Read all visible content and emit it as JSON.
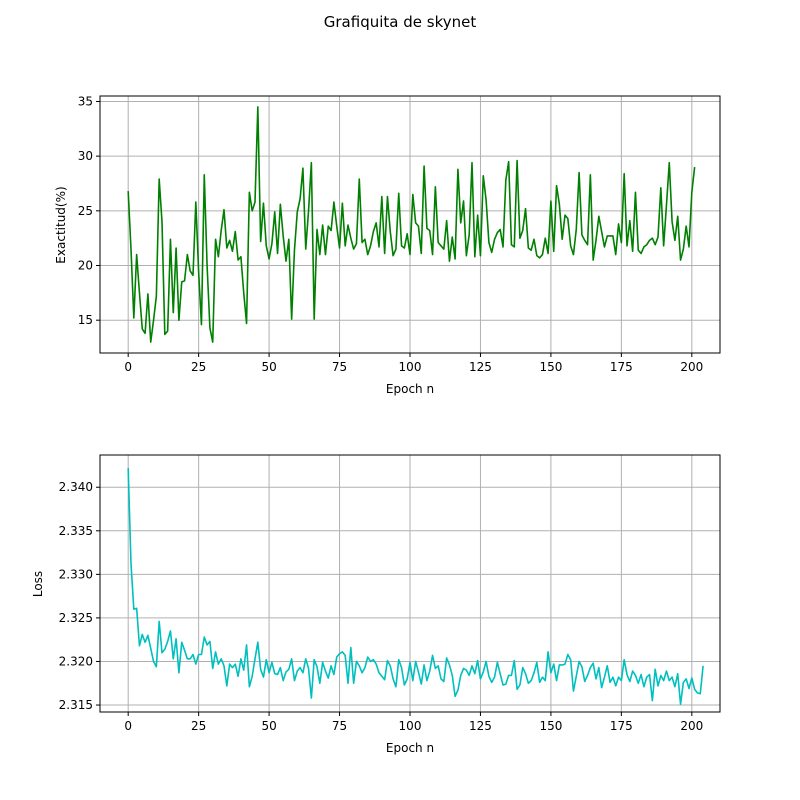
{
  "figure": {
    "suptitle": "Grafiquita de skynet"
  },
  "chart_data": [
    {
      "type": "line",
      "xlabel": "Epoch n",
      "ylabel": "Exactitud(%)",
      "xlim": [
        -10,
        210
      ],
      "ylim": [
        12,
        35.5
      ],
      "x_ticks": [
        0,
        25,
        50,
        75,
        100,
        125,
        150,
        175,
        200
      ],
      "x_tick_labels": [
        "0",
        "25",
        "50",
        "75",
        "100",
        "125",
        "150",
        "175",
        "200"
      ],
      "y_ticks": [
        15,
        20,
        25,
        30,
        35
      ],
      "y_tick_labels": [
        "15",
        "20",
        "25",
        "30",
        "35"
      ],
      "grid": true,
      "line_color": "#008000",
      "series": [
        {
          "values": [
            26.8,
            21.5,
            15.2,
            21.0,
            17.5,
            14.2,
            13.8,
            17.4,
            13.0,
            15.0,
            17.2,
            27.9,
            24.0,
            13.7,
            14.0,
            22.4,
            15.7,
            21.6,
            15.0,
            18.5,
            18.6,
            21.0,
            19.5,
            19.1,
            25.8,
            19.4,
            14.6,
            28.3,
            20.0,
            14.3,
            13.0,
            22.4,
            20.8,
            23.2,
            25.1,
            21.6,
            22.3,
            21.3,
            23.1,
            20.5,
            20.8,
            17.5,
            14.7,
            26.7,
            25.0,
            25.8,
            34.5,
            22.2,
            25.7,
            21.8,
            20.6,
            22.0,
            24.9,
            21.1,
            25.6,
            22.7,
            20.4,
            22.4,
            15.1,
            21.4,
            24.9,
            26.1,
            28.9,
            21.5,
            25.0,
            29.4,
            15.1,
            23.3,
            21.0,
            23.7,
            21.0,
            23.6,
            23.2,
            25.8,
            23.6,
            21.6,
            25.7,
            21.8,
            23.7,
            22.5,
            21.5,
            22.0,
            27.9,
            22.1,
            22.4,
            21.0,
            21.8,
            23.1,
            23.9,
            21.7,
            26.3,
            21.1,
            26.3,
            23.1,
            20.9,
            21.5,
            26.6,
            21.8,
            21.6,
            22.9,
            21.0,
            26.5,
            23.9,
            23.6,
            21.1,
            29.1,
            23.4,
            23.2,
            21.0,
            27.2,
            22.1,
            21.8,
            21.5,
            24.1,
            20.4,
            22.6,
            20.6,
            28.8,
            23.9,
            25.9,
            20.9,
            22.8,
            29.4,
            20.8,
            24.6,
            20.9,
            28.2,
            26.0,
            22.1,
            21.2,
            22.4,
            23.0,
            23.3,
            21.7,
            27.8,
            29.5,
            21.9,
            21.7,
            29.6,
            22.5,
            23.2,
            25.2,
            21.6,
            21.4,
            22.4,
            20.9,
            20.7,
            21.0,
            22.5,
            21.1,
            25.9,
            21.3,
            27.3,
            25.6,
            22.4,
            24.6,
            24.3,
            21.8,
            21.0,
            23.3,
            28.5,
            22.8,
            22.3,
            21.9,
            28.3,
            20.5,
            22.3,
            24.5,
            23.1,
            21.7,
            22.7,
            22.7,
            22.7,
            21.0,
            23.8,
            22.1,
            28.4,
            21.8,
            24.1,
            21.3,
            26.7,
            21.4,
            21.1,
            21.7,
            21.9,
            22.3,
            22.5,
            21.9,
            22.6,
            27.1,
            21.8,
            25.5,
            29.4,
            24.0,
            22.3,
            24.5,
            20.5,
            21.5,
            23.6,
            21.7,
            26.7,
            29.0
          ]
        }
      ]
    },
    {
      "type": "line",
      "xlabel": "Epoch n",
      "ylabel": "Loss",
      "xlim": [
        -10,
        210
      ],
      "ylim": [
        2.3142,
        2.3437
      ],
      "x_ticks": [
        0,
        25,
        50,
        75,
        100,
        125,
        150,
        175,
        200
      ],
      "x_tick_labels": [
        "0",
        "25",
        "50",
        "75",
        "100",
        "125",
        "150",
        "175",
        "200"
      ],
      "y_ticks": [
        2.315,
        2.32,
        2.325,
        2.33,
        2.335,
        2.34
      ],
      "y_tick_labels": [
        "2.315",
        "2.320",
        "2.325",
        "2.330",
        "2.335",
        "2.340"
      ],
      "grid": true,
      "line_color": "#00BFBF",
      "series": [
        {
          "values": [
            2.3422,
            2.3312,
            2.326,
            2.3261,
            2.3218,
            2.3231,
            2.3222,
            2.323,
            2.3215,
            2.32,
            2.3194,
            2.3246,
            2.321,
            2.3214,
            2.3223,
            2.3235,
            2.3203,
            2.3226,
            2.3187,
            2.3222,
            2.3213,
            2.3203,
            2.3203,
            2.3208,
            2.3197,
            2.3208,
            2.3208,
            2.3228,
            2.3219,
            2.3223,
            2.3192,
            2.3211,
            2.3197,
            2.3203,
            2.3195,
            2.3172,
            2.3197,
            2.3193,
            2.3197,
            2.3183,
            2.3203,
            2.319,
            2.3219,
            2.3171,
            2.3183,
            2.3203,
            2.3222,
            2.3191,
            2.3182,
            2.3202,
            2.3187,
            2.3199,
            2.3186,
            2.3185,
            2.3193,
            2.3178,
            2.3188,
            2.3191,
            2.3203,
            2.3178,
            2.3189,
            2.3193,
            2.3187,
            2.3203,
            2.3192,
            2.3158,
            2.3202,
            2.3194,
            2.3175,
            2.3199,
            2.3189,
            2.3181,
            2.3195,
            2.3185,
            2.3205,
            2.3209,
            2.3211,
            2.3207,
            2.3175,
            2.3216,
            2.3175,
            2.32,
            2.3195,
            2.3187,
            2.3193,
            2.3205,
            2.32,
            2.3202,
            2.3197,
            2.3187,
            2.3183,
            2.3179,
            2.3201,
            2.3195,
            2.318,
            2.3171,
            2.3202,
            2.3193,
            2.3173,
            2.318,
            2.3199,
            2.3178,
            2.32,
            2.3188,
            2.3174,
            2.3196,
            2.3178,
            2.3189,
            2.3207,
            2.3192,
            2.3195,
            2.318,
            2.3177,
            2.3204,
            2.3196,
            2.3184,
            2.316,
            2.3167,
            2.3184,
            2.3192,
            2.319,
            2.3184,
            2.3195,
            2.3186,
            2.3201,
            2.318,
            2.3188,
            2.32,
            2.3183,
            2.3176,
            2.3182,
            2.3199,
            2.3186,
            2.3173,
            2.3174,
            2.3184,
            2.3184,
            2.3201,
            2.3168,
            2.3173,
            2.3193,
            2.3186,
            2.3175,
            2.3178,
            2.3187,
            2.3199,
            2.3176,
            2.3182,
            2.3178,
            2.3211,
            2.3187,
            2.3197,
            2.3178,
            2.3196,
            2.3196,
            2.3197,
            2.3208,
            2.3202,
            2.3166,
            2.3183,
            2.32,
            2.3194,
            2.3177,
            2.3184,
            2.3193,
            2.3198,
            2.318,
            2.3193,
            2.317,
            2.3182,
            2.3195,
            2.3176,
            2.3182,
            2.3172,
            2.3182,
            2.3178,
            2.3202,
            2.3185,
            2.3177,
            2.3189,
            2.3184,
            2.3175,
            2.3185,
            2.3171,
            2.3182,
            2.3185,
            2.3155,
            2.3191,
            2.3172,
            2.3184,
            2.3178,
            2.3189,
            2.3178,
            2.3182,
            2.3171,
            2.3186,
            2.3151,
            2.3176,
            2.318,
            2.3169,
            2.3181,
            2.3168,
            2.3164,
            2.3163,
            2.3195
          ]
        }
      ]
    }
  ]
}
